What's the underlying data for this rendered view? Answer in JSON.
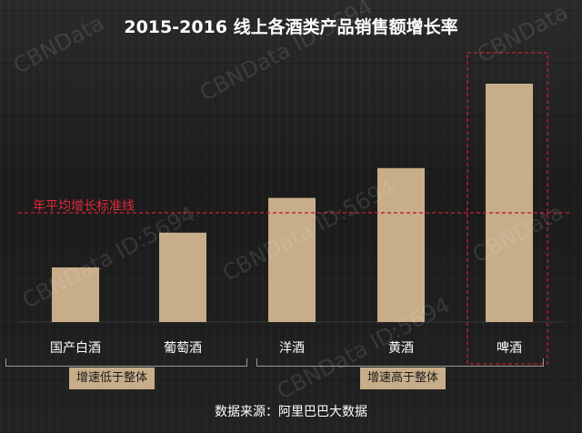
{
  "title": "2015-2016 线上各酒类产品销售额增长率",
  "avg_line_label": "年平均增长标准线",
  "source": "数据来源：阿里巴巴大数据",
  "groups": {
    "low": "增速低于整体",
    "high": "增速高于整体"
  },
  "watermarks": [
    "CBNData",
    "CBNData ID:5694",
    "CBNData ID:5694",
    "CBNData ID:5694",
    "CBNData",
    "CBNData ID:5694",
    "CBNData"
  ],
  "colors": {
    "bar": "#c7ad8a",
    "avg_line": "#c0202e",
    "highlight_box": "#c0202e",
    "label": "#ffffff"
  },
  "chart_data": {
    "type": "bar",
    "title": "2015-2016 线上各酒类产品销售额增长率",
    "categories": [
      "国产白酒",
      "葡萄酒",
      "洋酒",
      "黄酒",
      "啤酒"
    ],
    "values": [
      22,
      36,
      50,
      62,
      96
    ],
    "avg_line": 40,
    "ylim": [
      0,
      100
    ],
    "ylabel": "",
    "grid": false,
    "value_note": "no numeric axis shown; values are relative estimates"
  }
}
